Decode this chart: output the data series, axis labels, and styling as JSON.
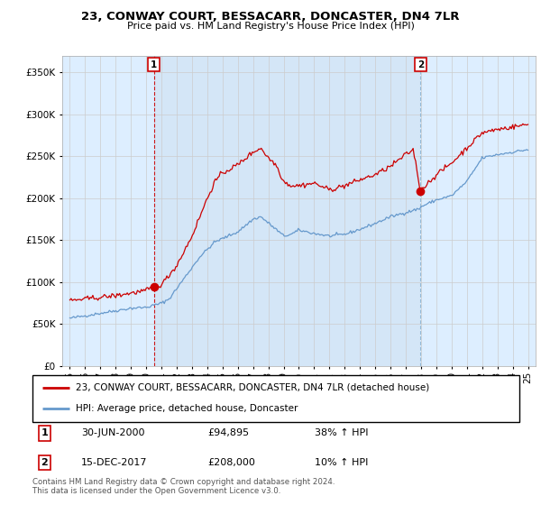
{
  "title": "23, CONWAY COURT, BESSACARR, DONCASTER, DN4 7LR",
  "subtitle": "Price paid vs. HM Land Registry's House Price Index (HPI)",
  "legend_entry1": "23, CONWAY COURT, BESSACARR, DONCASTER, DN4 7LR (detached house)",
  "legend_entry2": "HPI: Average price, detached house, Doncaster",
  "annotation1_label": "1",
  "annotation1_date": "30-JUN-2000",
  "annotation1_price": "£94,895",
  "annotation1_hpi": "38% ↑ HPI",
  "annotation2_label": "2",
  "annotation2_date": "15-DEC-2017",
  "annotation2_price": "£208,000",
  "annotation2_hpi": "10% ↑ HPI",
  "footer": "Contains HM Land Registry data © Crown copyright and database right 2024.\nThis data is licensed under the Open Government Licence v3.0.",
  "sale1_x": 2000.5,
  "sale1_y": 94895,
  "sale2_x": 2017.96,
  "sale2_y": 208000,
  "red_color": "#cc0000",
  "blue_color": "#6699cc",
  "vline1_color": "#cc0000",
  "vline2_color": "#8ab4d4",
  "grid_color": "#cccccc",
  "background_color": "#ffffff",
  "chart_bg_color": "#ddeeff",
  "ylim": [
    0,
    370000
  ],
  "xlim_start": 1994.5,
  "xlim_end": 2025.5,
  "yticks": [
    0,
    50000,
    100000,
    150000,
    200000,
    250000,
    300000,
    350000
  ]
}
